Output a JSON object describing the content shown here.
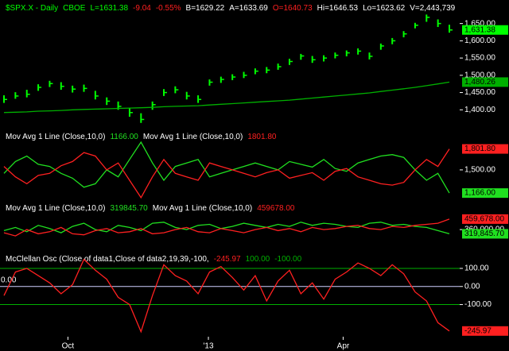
{
  "chart_data": [
    {
      "type": "ohlc",
      "title_parts": [
        {
          "text": "$SPX.X - Daily",
          "color": "#00ff00"
        },
        {
          "text": "CBOE",
          "color": "#00ff00"
        },
        {
          "text": "L=1631.38",
          "color": "#00ff00"
        },
        {
          "text": "-9.04",
          "color": "#ff2020"
        },
        {
          "text": "-0.55%",
          "color": "#ff2020"
        },
        {
          "text": "B=1629.22",
          "color": "#ffffff"
        },
        {
          "text": "A=1633.69",
          "color": "#ffffff"
        },
        {
          "text": "O=1640.73",
          "color": "#ff2020"
        },
        {
          "text": "Hi=1646.53",
          "color": "#ffffff"
        },
        {
          "text": "Lo=1623.62",
          "color": "#ffffff"
        },
        {
          "text": "V=2,443,739",
          "color": "#ffffff"
        }
      ],
      "color": "#00ff00",
      "high": [
        1442,
        1451,
        1458,
        1474,
        1484,
        1480,
        1470,
        1473,
        1455,
        1436,
        1424,
        1405,
        1390,
        1424,
        1460,
        1468,
        1452,
        1442,
        1488,
        1496,
        1503,
        1510,
        1520,
        1524,
        1534,
        1548,
        1562,
        1556,
        1558,
        1566,
        1572,
        1578,
        1566,
        1592,
        1608,
        1628,
        1652,
        1676,
        1662,
        1646.53
      ],
      "low": [
        1420,
        1432,
        1436,
        1455,
        1466,
        1458,
        1450,
        1452,
        1430,
        1414,
        1400,
        1380,
        1362,
        1400,
        1440,
        1448,
        1430,
        1420,
        1470,
        1478,
        1486,
        1492,
        1503,
        1506,
        1516,
        1530,
        1545,
        1536,
        1540,
        1549,
        1555,
        1560,
        1546,
        1574,
        1590,
        1610,
        1636,
        1655,
        1640,
        1623.62
      ],
      "close": [
        1430,
        1440,
        1445,
        1465,
        1476,
        1468,
        1460,
        1462,
        1440,
        1425,
        1410,
        1392,
        1372,
        1415,
        1450,
        1458,
        1440,
        1430,
        1480,
        1488,
        1495,
        1500,
        1512,
        1515,
        1525,
        1540,
        1556,
        1545,
        1550,
        1558,
        1565,
        1570,
        1555,
        1585,
        1600,
        1620,
        1645,
        1668,
        1650,
        1631.38
      ],
      "value_labels": [
        null,
        null,
        null,
        null,
        null,
        null,
        null,
        null,
        null,
        null,
        null,
        null,
        null,
        null,
        null,
        null,
        null,
        null,
        null,
        null,
        null,
        null,
        null,
        null,
        null,
        null,
        null,
        null,
        null,
        null,
        null,
        null,
        null,
        null,
        null,
        null,
        null,
        null,
        null,
        "1,631.38"
      ],
      "series": [
        {
          "color": "#00b000",
          "values": [
            1392,
            1393,
            1394,
            1396,
            1397,
            1398,
            1400,
            1401,
            1402,
            1403,
            1404,
            1405,
            1406,
            1407,
            1409,
            1410,
            1411,
            1412,
            1414,
            1416,
            1418,
            1420,
            1422,
            1424,
            1426,
            1428,
            1431,
            1434,
            1437,
            1440,
            1443,
            1446,
            1449,
            1453,
            1457,
            1461,
            1465,
            1470,
            1475,
            1480.26
          ],
          "value_labels": [
            null,
            null,
            null,
            null,
            null,
            null,
            null,
            null,
            null,
            null,
            null,
            null,
            null,
            null,
            null,
            null,
            null,
            null,
            null,
            null,
            null,
            null,
            null,
            null,
            null,
            null,
            null,
            null,
            null,
            null,
            null,
            null,
            null,
            null,
            null,
            null,
            null,
            null,
            null,
            "1,480.26"
          ]
        }
      ],
      "ylim": [
        1350,
        1713.6
      ],
      "yticks": [
        {
          "value": 1400,
          "label": "1,400.00"
        },
        {
          "value": 1450,
          "label": "1,450.00"
        },
        {
          "value": 1500,
          "label": "1,500.00"
        },
        {
          "value": 1550,
          "label": "1,550.00"
        },
        {
          "value": 1600,
          "label": "1,600.00"
        },
        {
          "value": 1650,
          "label": "1,650.00"
        }
      ]
    },
    {
      "type": "line",
      "series": [
        {
          "name": "Mov Avg 1 Line (Close,10,0)",
          "header_value": "1166.00",
          "color": "#20e020",
          "values": [
            1450,
            1620,
            1700,
            1580,
            1550,
            1450,
            1380,
            1250,
            1300,
            1500,
            1400,
            1650,
            1900,
            1600,
            1350,
            1550,
            1600,
            1650,
            1400,
            1450,
            1500,
            1550,
            1600,
            1550,
            1500,
            1620,
            1580,
            1540,
            1650,
            1520,
            1480,
            1600,
            1650,
            1700,
            1720,
            1680,
            1500,
            1350,
            1450,
            1166
          ],
          "value_labels": [
            null,
            null,
            null,
            null,
            null,
            null,
            null,
            null,
            null,
            null,
            null,
            null,
            null,
            null,
            null,
            null,
            null,
            null,
            null,
            null,
            null,
            null,
            null,
            null,
            null,
            null,
            null,
            null,
            null,
            null,
            null,
            null,
            null,
            null,
            null,
            null,
            null,
            null,
            null,
            "1,166.00"
          ]
        },
        {
          "name": "Mov Avg 1 Line (Close,10,0)",
          "header_value": "1801.80",
          "color": "#ff2020",
          "values": [
            1550,
            1400,
            1300,
            1420,
            1450,
            1560,
            1620,
            1750,
            1700,
            1500,
            1600,
            1350,
            1100,
            1400,
            1650,
            1450,
            1400,
            1350,
            1600,
            1550,
            1500,
            1450,
            1400,
            1460,
            1500,
            1380,
            1420,
            1460,
            1350,
            1480,
            1520,
            1400,
            1350,
            1300,
            1280,
            1320,
            1500,
            1650,
            1550,
            1801.8
          ],
          "value_labels": [
            null,
            null,
            null,
            null,
            null,
            null,
            null,
            null,
            null,
            null,
            null,
            null,
            null,
            null,
            null,
            null,
            null,
            null,
            null,
            null,
            null,
            null,
            null,
            null,
            null,
            null,
            null,
            null,
            null,
            null,
            null,
            null,
            null,
            null,
            null,
            null,
            null,
            null,
            null,
            "1,801.80"
          ]
        }
      ],
      "ylim": [
        1110,
        2060
      ],
      "yticks": [
        {
          "value": 1500,
          "label": "1,500.00"
        }
      ]
    },
    {
      "type": "line",
      "series": [
        {
          "name": "Mov Avg 1 Line (Close,10,0)",
          "header_value": "319845.70",
          "color": "#20e020",
          "values": [
            350000,
            380000,
            340000,
            400000,
            370000,
            330000,
            390000,
            420000,
            360000,
            340000,
            400000,
            380000,
            350000,
            420000,
            430000,
            380000,
            360000,
            400000,
            410000,
            370000,
            390000,
            420000,
            400000,
            380000,
            410000,
            390000,
            430000,
            400000,
            420000,
            410000,
            390000,
            380000,
            420000,
            430000,
            400000,
            410000,
            390000,
            380000,
            350000,
            319845.7
          ],
          "value_labels": [
            null,
            null,
            null,
            null,
            null,
            null,
            null,
            null,
            null,
            null,
            null,
            null,
            null,
            null,
            null,
            null,
            null,
            null,
            null,
            null,
            null,
            null,
            null,
            null,
            null,
            null,
            null,
            null,
            null,
            null,
            null,
            null,
            null,
            null,
            null,
            null,
            null,
            null,
            null,
            "319,845.70"
          ]
        },
        {
          "name": "Mov Avg 1 Line (Close,10,0)",
          "header_value": "459678.00",
          "color": "#ff2020",
          "values": [
            330000,
            300000,
            360000,
            320000,
            340000,
            380000,
            320000,
            310000,
            350000,
            370000,
            330000,
            340000,
            370000,
            320000,
            330000,
            360000,
            380000,
            340000,
            330000,
            370000,
            350000,
            330000,
            360000,
            380000,
            350000,
            370000,
            340000,
            380000,
            360000,
            370000,
            390000,
            400000,
            370000,
            360000,
            390000,
            380000,
            400000,
            410000,
            420000,
            459678
          ],
          "value_labels": [
            null,
            null,
            null,
            null,
            null,
            null,
            null,
            null,
            null,
            null,
            null,
            null,
            null,
            null,
            null,
            null,
            null,
            null,
            null,
            null,
            null,
            null,
            null,
            null,
            null,
            null,
            null,
            null,
            null,
            null,
            null,
            null,
            null,
            null,
            null,
            null,
            null,
            null,
            null,
            "459,678.00"
          ]
        }
      ],
      "ylim": [
        240000,
        640000
      ],
      "yticks": [
        {
          "value": 360000,
          "label": "360,000.00"
        }
      ]
    },
    {
      "type": "line",
      "title": "McClellan Osc (Close of data1,Close of data2,19,39,-100,",
      "series": [
        {
          "header_value": "-245.97",
          "color": "#ff2020",
          "values": [
            -50,
            80,
            100,
            60,
            20,
            -40,
            10,
            150,
            90,
            40,
            -60,
            -100,
            -250,
            -50,
            120,
            60,
            30,
            -40,
            80,
            110,
            50,
            -20,
            60,
            -80,
            30,
            90,
            -40,
            20,
            -70,
            40,
            80,
            130,
            100,
            60,
            120,
            70,
            -30,
            -80,
            -200,
            -245.97
          ],
          "value_labels": [
            null,
            null,
            null,
            null,
            null,
            null,
            null,
            null,
            null,
            null,
            null,
            null,
            null,
            null,
            null,
            null,
            null,
            null,
            null,
            null,
            null,
            null,
            null,
            null,
            null,
            null,
            null,
            null,
            null,
            null,
            null,
            null,
            null,
            null,
            null,
            null,
            null,
            null,
            null,
            "-245.97"
          ]
        }
      ],
      "reference_lines": [
        {
          "value": 100,
          "label": "100.00",
          "color": "#00b000",
          "label_position": "header"
        },
        {
          "value": 0,
          "label": "0.00",
          "color": "#d0d0ff",
          "label_position": "left"
        },
        {
          "value": -100,
          "label": "-100.00",
          "color": "#00b000",
          "label_position": "header"
        }
      ],
      "ylim": [
        -260,
        214
      ],
      "yticks": [
        {
          "value": 100,
          "label": "100.00"
        },
        {
          "value": 0,
          "label": "0.00"
        },
        {
          "value": -100,
          "label": "-100.00"
        }
      ],
      "xlim": [
        0,
        39
      ],
      "xticks": [
        {
          "value": 5.6,
          "label": "Oct"
        },
        {
          "value": 17.9,
          "label": "'13"
        },
        {
          "value": 29.7,
          "label": "Apr"
        }
      ]
    }
  ]
}
